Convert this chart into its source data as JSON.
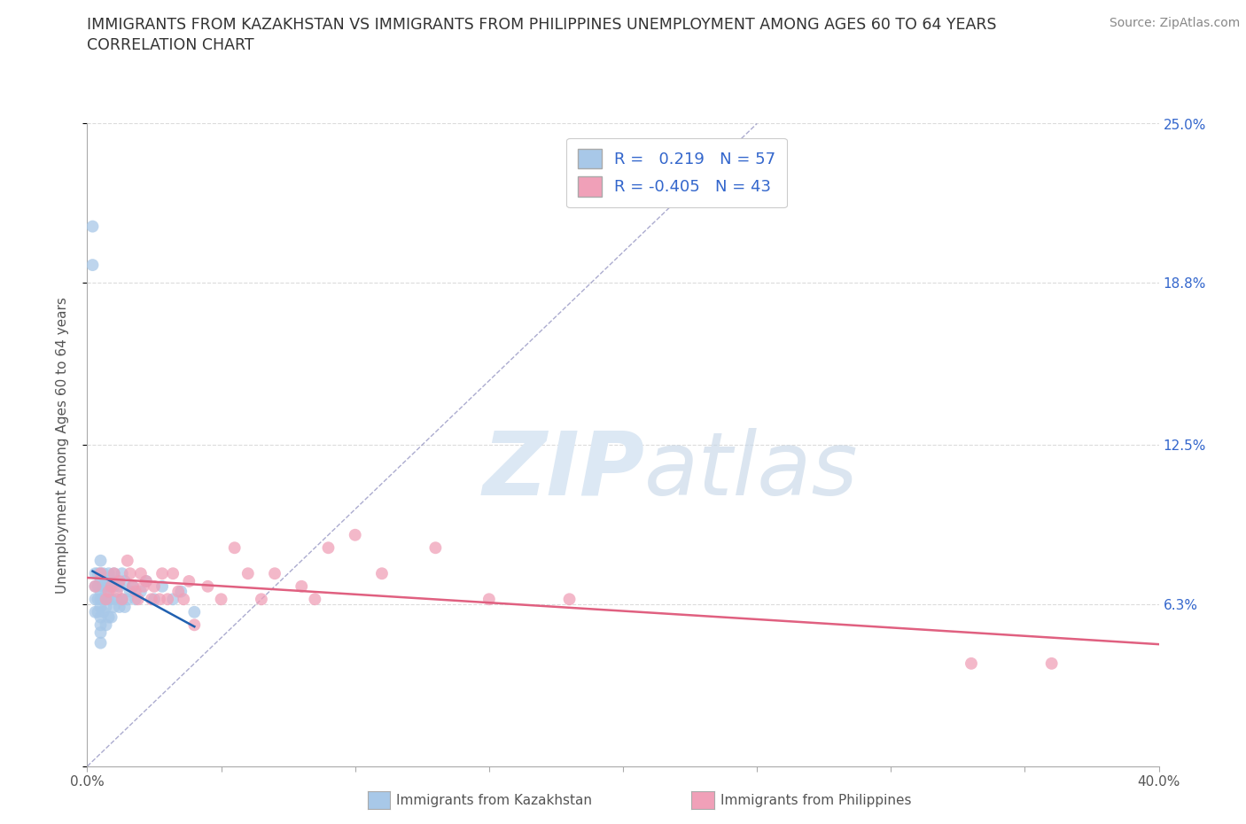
{
  "title_line1": "IMMIGRANTS FROM KAZAKHSTAN VS IMMIGRANTS FROM PHILIPPINES UNEMPLOYMENT AMONG AGES 60 TO 64 YEARS",
  "title_line2": "CORRELATION CHART",
  "source_text": "Source: ZipAtlas.com",
  "ylabel": "Unemployment Among Ages 60 to 64 years",
  "xlim": [
    0.0,
    0.4
  ],
  "ylim": [
    0.0,
    0.25
  ],
  "xtick_vals": [
    0.0,
    0.05,
    0.1,
    0.15,
    0.2,
    0.25,
    0.3,
    0.35,
    0.4
  ],
  "ytick_vals": [
    0.0,
    0.063,
    0.125,
    0.188,
    0.25
  ],
  "ytick_labels": [
    "",
    "6.3%",
    "12.5%",
    "18.8%",
    "25.0%"
  ],
  "kazakhstan_R": 0.219,
  "kazakhstan_N": 57,
  "philippines_R": -0.405,
  "philippines_N": 43,
  "blue_color": "#a8c8e8",
  "blue_line_color": "#2060b0",
  "pink_color": "#f0a0b8",
  "pink_line_color": "#e06080",
  "grid_color": "#cccccc",
  "diagonal_color": "#8888bb",
  "background_color": "#ffffff",
  "kazakhstan_x": [
    0.002,
    0.002,
    0.003,
    0.003,
    0.003,
    0.003,
    0.004,
    0.004,
    0.004,
    0.004,
    0.005,
    0.005,
    0.005,
    0.005,
    0.005,
    0.005,
    0.005,
    0.005,
    0.005,
    0.005,
    0.006,
    0.006,
    0.006,
    0.006,
    0.007,
    0.007,
    0.007,
    0.007,
    0.008,
    0.008,
    0.008,
    0.008,
    0.009,
    0.009,
    0.009,
    0.01,
    0.01,
    0.01,
    0.011,
    0.011,
    0.012,
    0.012,
    0.013,
    0.013,
    0.014,
    0.014,
    0.015,
    0.016,
    0.017,
    0.018,
    0.02,
    0.022,
    0.025,
    0.028,
    0.032,
    0.035,
    0.04
  ],
  "kazakhstan_y": [
    0.21,
    0.195,
    0.075,
    0.07,
    0.065,
    0.06,
    0.075,
    0.07,
    0.065,
    0.06,
    0.08,
    0.075,
    0.072,
    0.068,
    0.065,
    0.062,
    0.058,
    0.055,
    0.052,
    0.048,
    0.075,
    0.07,
    0.065,
    0.06,
    0.072,
    0.068,
    0.062,
    0.055,
    0.075,
    0.07,
    0.065,
    0.058,
    0.072,
    0.065,
    0.058,
    0.075,
    0.07,
    0.062,
    0.072,
    0.065,
    0.07,
    0.062,
    0.075,
    0.065,
    0.072,
    0.062,
    0.065,
    0.068,
    0.07,
    0.065,
    0.068,
    0.072,
    0.065,
    0.07,
    0.065,
    0.068,
    0.06
  ],
  "philippines_x": [
    0.003,
    0.005,
    0.007,
    0.008,
    0.009,
    0.01,
    0.011,
    0.012,
    0.013,
    0.015,
    0.016,
    0.017,
    0.018,
    0.019,
    0.02,
    0.021,
    0.022,
    0.024,
    0.025,
    0.027,
    0.028,
    0.03,
    0.032,
    0.034,
    0.036,
    0.038,
    0.04,
    0.045,
    0.05,
    0.055,
    0.06,
    0.065,
    0.07,
    0.08,
    0.085,
    0.09,
    0.1,
    0.11,
    0.13,
    0.15,
    0.18,
    0.33,
    0.36
  ],
  "philippines_y": [
    0.07,
    0.075,
    0.065,
    0.068,
    0.07,
    0.075,
    0.068,
    0.072,
    0.065,
    0.08,
    0.075,
    0.07,
    0.068,
    0.065,
    0.075,
    0.07,
    0.072,
    0.065,
    0.07,
    0.065,
    0.075,
    0.065,
    0.075,
    0.068,
    0.065,
    0.072,
    0.055,
    0.07,
    0.065,
    0.085,
    0.075,
    0.065,
    0.075,
    0.07,
    0.065,
    0.085,
    0.09,
    0.075,
    0.085,
    0.065,
    0.065,
    0.04,
    0.04
  ]
}
